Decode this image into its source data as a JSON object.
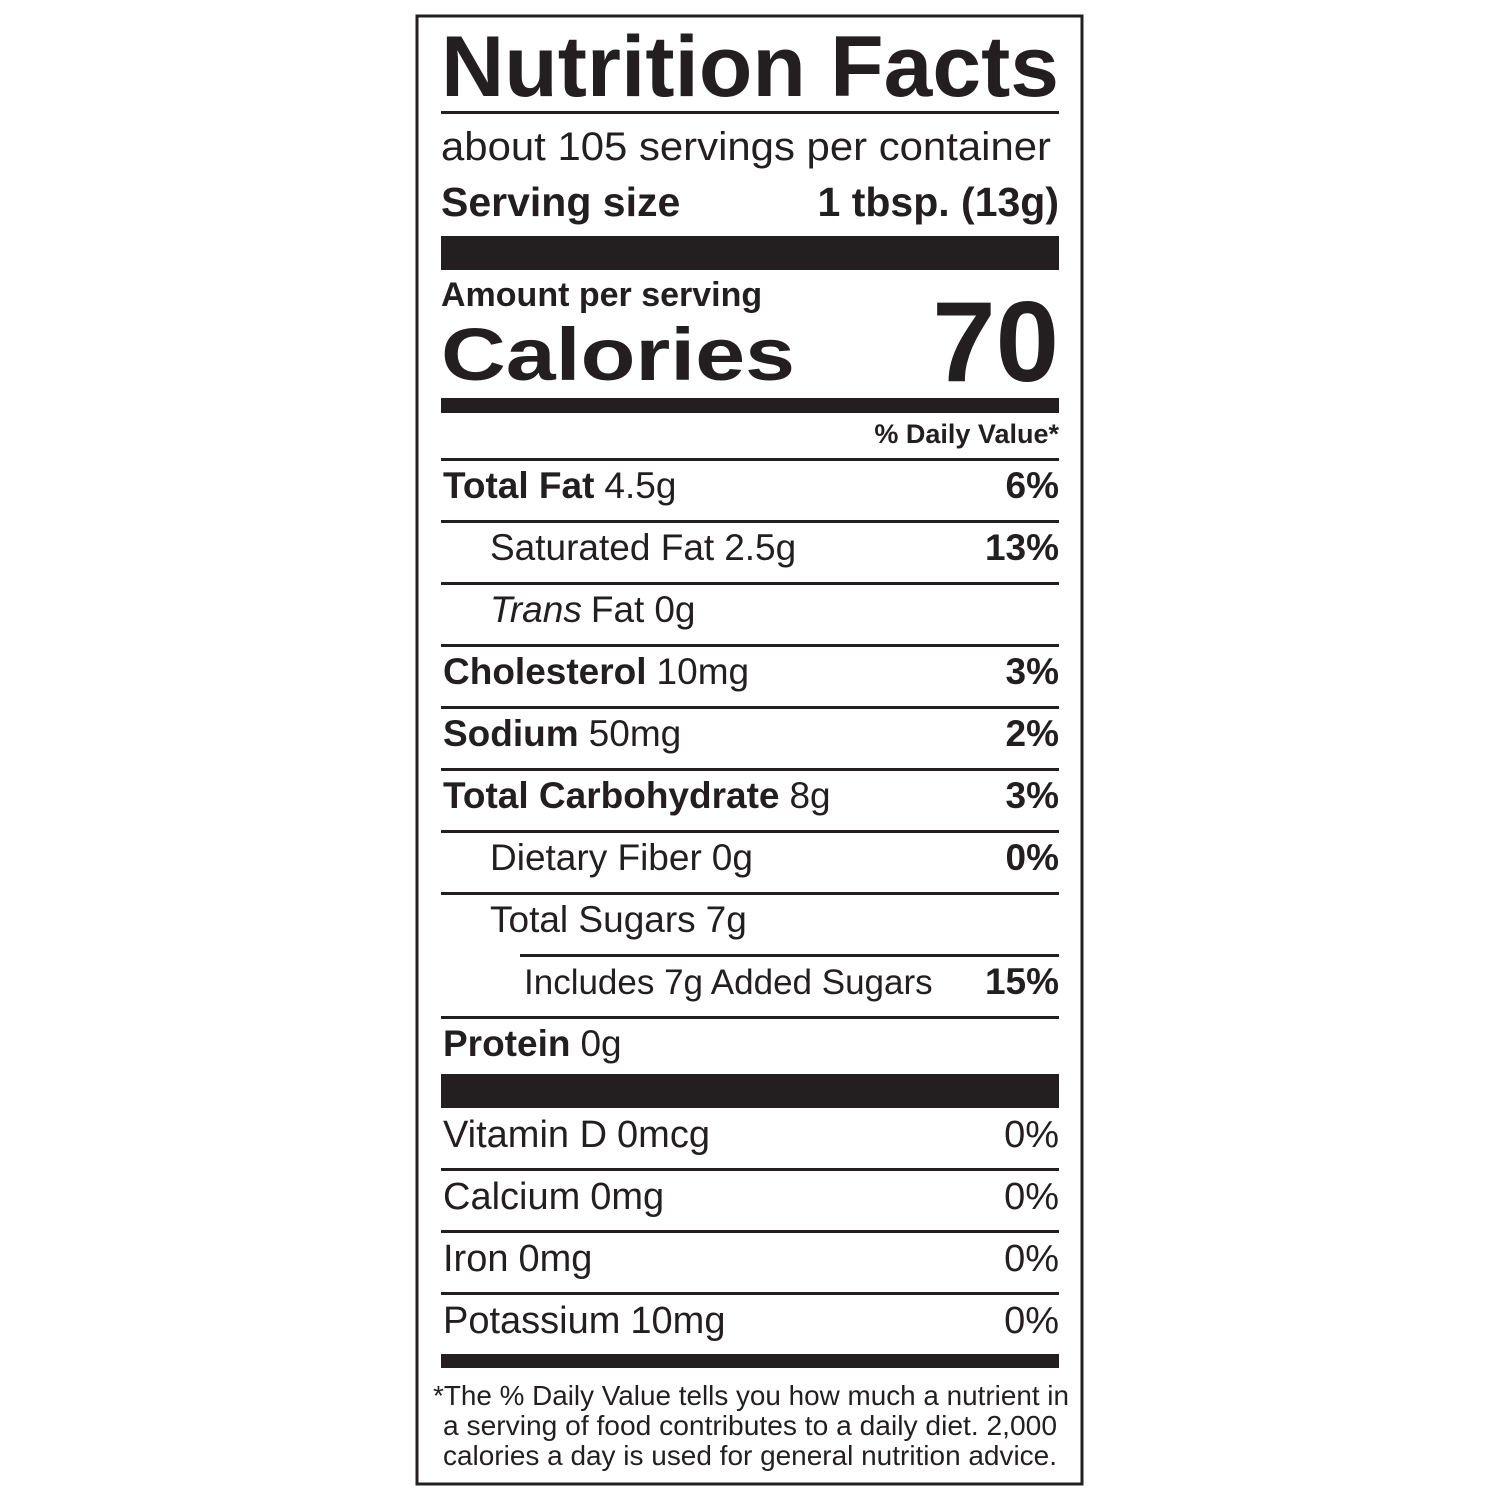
{
  "label": {
    "title": "Nutrition Facts",
    "servings": "about 105 servings per container",
    "serving_size": {
      "label": "Serving size",
      "value": "1 tbsp. (13g)"
    },
    "amount_per_serving": "Amount per serving",
    "calories": {
      "label": "Calories",
      "value": "70"
    },
    "daily_value_header": "% Daily Value*",
    "nutrients": [
      {
        "name": "Total Fat",
        "amount": "4.5g",
        "dv": "6%",
        "sub": [
          {
            "name": "Saturated Fat",
            "amount": "2.5g",
            "dv": "13%"
          },
          {
            "name_italic": "Trans",
            "name": "Fat",
            "amount": "0g"
          }
        ]
      },
      {
        "name": "Cholesterol",
        "amount": "10mg",
        "dv": "3%"
      },
      {
        "name": "Sodium",
        "amount": "50mg",
        "dv": "2%"
      },
      {
        "name": "Total Carbohydrate",
        "amount": "8g",
        "dv": "3%",
        "sub": [
          {
            "name": "Dietary Fiber",
            "amount": "0g",
            "dv": "0%"
          },
          {
            "name": "Total Sugars",
            "amount": "7g",
            "sub": [
              {
                "name": "Includes 7g Added Sugars",
                "dv": "15%"
              }
            ]
          }
        ]
      },
      {
        "name": "Protein",
        "amount": "0g"
      }
    ],
    "vitamins": [
      {
        "name": "Vitamin D",
        "amount": "0mcg",
        "dv": "0%"
      },
      {
        "name": "Calcium",
        "amount": "0mg",
        "dv": "0%"
      },
      {
        "name": "Iron",
        "amount": "0mg",
        "dv": "0%"
      },
      {
        "name": "Potassium",
        "amount": "10mg",
        "dv": "0%"
      }
    ],
    "footnote": [
      "*The % Daily Value tells you how much a nutrient in",
      "a serving of food contributes to a daily diet. 2,000",
      "calories a day is used for general nutrition advice."
    ]
  }
}
